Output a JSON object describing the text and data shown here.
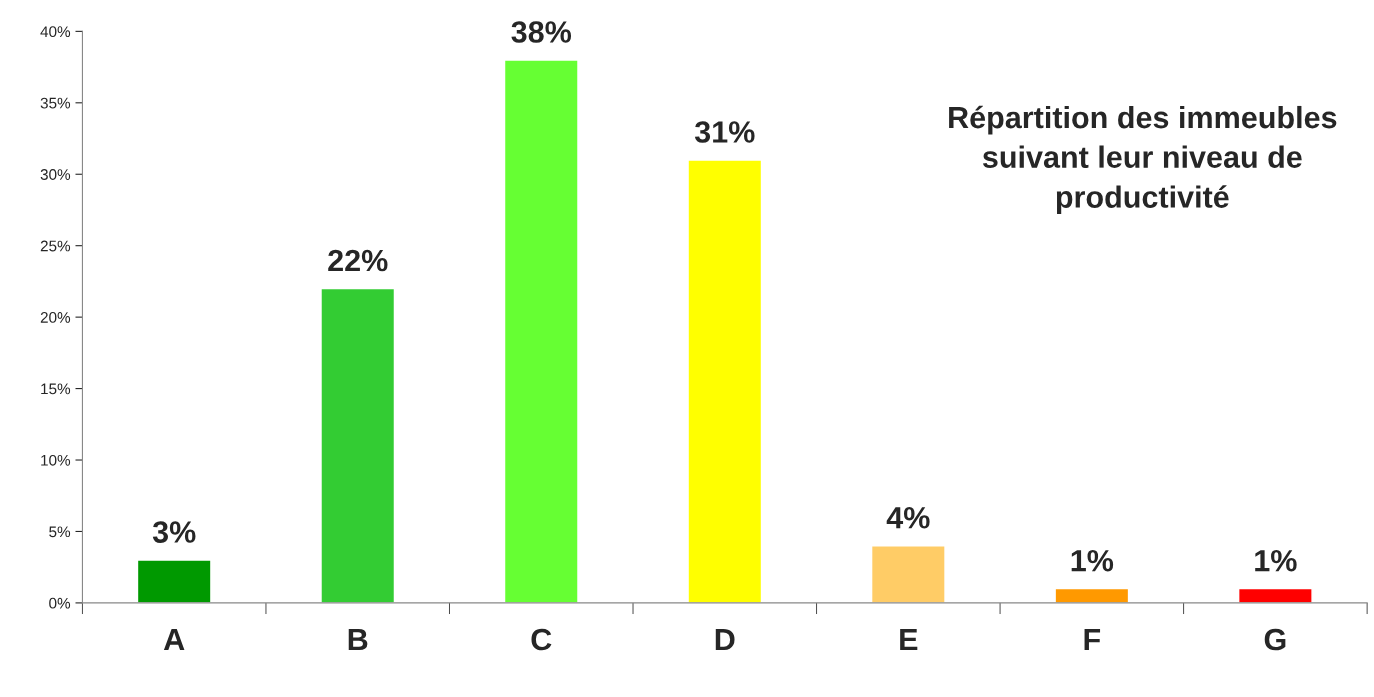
{
  "chart_data": {
    "type": "bar",
    "title": "Répartition des immeubles suivant leur niveau de productivité",
    "categories": [
      "A",
      "B",
      "C",
      "D",
      "E",
      "F",
      "G"
    ],
    "values": [
      3,
      22,
      38,
      31,
      4,
      1,
      1
    ],
    "colors": [
      "#009900",
      "#33cc33",
      "#66ff33",
      "#ffff00",
      "#ffcc66",
      "#ff9900",
      "#ff0000"
    ],
    "value_labels": [
      "3%",
      "22%",
      "38%",
      "31%",
      "4%",
      "1%",
      "1%"
    ],
    "ylim": [
      0,
      40
    ],
    "yticks": [
      {
        "value": 0,
        "label": "0%"
      },
      {
        "value": 5,
        "label": "5%"
      },
      {
        "value": 10,
        "label": "10%"
      },
      {
        "value": 15,
        "label": "15%"
      },
      {
        "value": 20,
        "label": "20%"
      },
      {
        "value": 25,
        "label": "25%"
      },
      {
        "value": 30,
        "label": "30%"
      },
      {
        "value": 35,
        "label": "35%"
      },
      {
        "value": 40,
        "label": "40%"
      }
    ],
    "grid": false,
    "legend": false
  }
}
